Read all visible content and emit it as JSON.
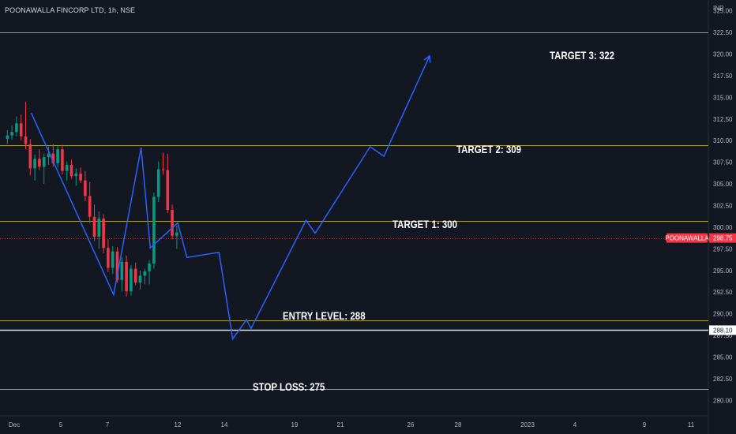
{
  "header": {
    "symbol": "POONAWALLA FINCORP LTD, 1h, NSE",
    "currency": "INR"
  },
  "chart_data": {
    "type": "candlestick",
    "ylim": [
      278.75,
      326.25
    ],
    "y_ticks": [
      "325.00",
      "322.50",
      "320.00",
      "317.50",
      "315.00",
      "312.50",
      "310.00",
      "307.50",
      "305.00",
      "302.50",
      "300.00",
      "297.50",
      "295.00",
      "292.50",
      "290.00",
      "287.50",
      "285.00",
      "282.50",
      "280.00"
    ],
    "x_ticks": [
      "Dec",
      "5",
      "7",
      "12",
      "14",
      "19",
      "21",
      "26",
      "28",
      "2023",
      "4",
      "9",
      "11"
    ],
    "grid": false,
    "levels": [
      {
        "label": "",
        "value": 322.5,
        "color": "#c2b63a"
      },
      {
        "label": "TARGET 3: 322",
        "value": 322.0,
        "color": "#ffffff"
      },
      {
        "label": "TARGET 2: 309",
        "value": 309.5,
        "color": "#c2b63a"
      },
      {
        "label": "TARGET 1: 300",
        "value": 300.7,
        "color": "#c2b63a"
      },
      {
        "label": "ENTRY LEVEL: 288",
        "value": 289.2,
        "color": "#c2b63a"
      },
      {
        "label": "",
        "value": 288.1,
        "color": "#ffffff"
      },
      {
        "label": "STOP LOSS: 275",
        "value": 281.3,
        "color": "#c2b63a"
      }
    ],
    "price_tags": [
      {
        "name": "POONAWALLA",
        "value": "298.75",
        "y": 298.75,
        "color": "#f23645"
      },
      {
        "name": "",
        "value": "288.10",
        "y": 288.1,
        "color": "#ffffff"
      }
    ],
    "current_price": 298.75,
    "projection_path": [
      [
        1,
        313.2
      ],
      [
        19,
        292.2
      ],
      [
        25,
        309.2
      ],
      [
        27,
        297.6
      ],
      [
        33,
        300.5
      ],
      [
        35,
        296.5
      ],
      [
        42,
        297.1
      ],
      [
        45,
        287.1
      ],
      [
        48,
        289.3
      ],
      [
        49,
        288.3
      ],
      [
        61,
        300.8
      ],
      [
        63,
        299.3
      ],
      [
        75,
        309.3
      ],
      [
        78,
        308.2
      ],
      [
        88,
        319.8
      ]
    ],
    "candles": [
      [
        0,
        310.2,
        311.2,
        309.6,
        310.6
      ],
      [
        1,
        310.6,
        311.8,
        310.1,
        311.0
      ],
      [
        2,
        311.0,
        312.8,
        310.5,
        312.0
      ],
      [
        3,
        312.0,
        313.0,
        310.0,
        310.5
      ],
      [
        4,
        310.5,
        314.5,
        309.0,
        309.6
      ],
      [
        5,
        309.6,
        310.2,
        306.0,
        306.8
      ],
      [
        6,
        306.8,
        308.4,
        305.4,
        307.9
      ],
      [
        7,
        307.9,
        309.0,
        306.6,
        307.0
      ],
      [
        8,
        307.0,
        308.5,
        305.0,
        308.1
      ],
      [
        9,
        308.1,
        309.3,
        307.2,
        308.5
      ],
      [
        10,
        308.5,
        309.6,
        307.0,
        307.4
      ],
      [
        11,
        307.4,
        309.4,
        306.9,
        309.0
      ],
      [
        12,
        309.0,
        309.5,
        306.1,
        306.5
      ],
      [
        13,
        306.5,
        307.6,
        305.4,
        307.2
      ],
      [
        14,
        307.2,
        307.8,
        305.6,
        305.9
      ],
      [
        15,
        305.9,
        306.8,
        304.8,
        306.2
      ],
      [
        16,
        306.2,
        306.9,
        305.1,
        305.4
      ],
      [
        17,
        305.4,
        306.5,
        303.0,
        303.6
      ],
      [
        18,
        303.6,
        305.2,
        300.5,
        301.2
      ],
      [
        19,
        301.2,
        302.6,
        298.4,
        298.9
      ],
      [
        20,
        298.9,
        301.8,
        297.5,
        301.0
      ],
      [
        21,
        301.0,
        301.5,
        297.0,
        297.6
      ],
      [
        22,
        297.6,
        298.6,
        294.8,
        295.3
      ],
      [
        23,
        295.3,
        297.8,
        294.6,
        297.2
      ],
      [
        24,
        297.2,
        297.7,
        293.6,
        293.9
      ],
      [
        25,
        293.9,
        296.5,
        292.6,
        296.0
      ],
      [
        26,
        296.0,
        296.7,
        292.0,
        292.6
      ],
      [
        27,
        292.6,
        295.6,
        292.1,
        295.2
      ],
      [
        28,
        295.2,
        295.9,
        293.3,
        293.6
      ],
      [
        29,
        293.6,
        295.0,
        292.8,
        294.4
      ],
      [
        30,
        294.4,
        295.2,
        293.4,
        294.9
      ],
      [
        31,
        294.9,
        296.2,
        293.4,
        295.8
      ],
      [
        32,
        295.8,
        304.0,
        295.2,
        303.5
      ],
      [
        33,
        303.5,
        307.6,
        302.9,
        306.7
      ],
      [
        34,
        306.7,
        308.6,
        306.1,
        306.6
      ],
      [
        35,
        306.6,
        308.5,
        301.6,
        302.0
      ],
      [
        36,
        302.0,
        302.6,
        298.6,
        299.0
      ],
      [
        37,
        299.0,
        300.2,
        297.5,
        299.4
      ]
    ]
  }
}
